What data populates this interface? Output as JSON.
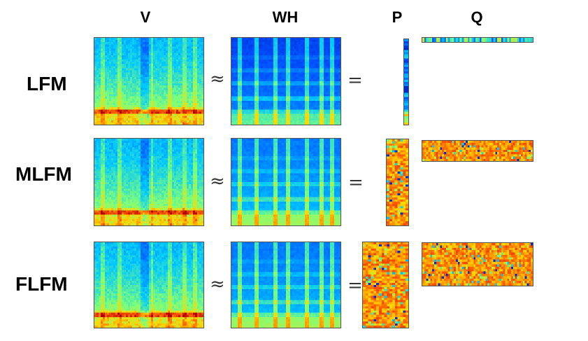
{
  "headers": {
    "v": "V",
    "wh": "WH",
    "p": "P",
    "q": "Q"
  },
  "symbols": {
    "approx": "≈",
    "equals": "="
  },
  "rows": [
    {
      "label": "LFM"
    },
    {
      "label": "MLFM"
    },
    {
      "label": "FLFM"
    }
  ],
  "colormap": [
    "#00008f",
    "#0050ff",
    "#00c8ff",
    "#7dff7a",
    "#ffd800",
    "#ff5a00",
    "#b00000"
  ]
}
